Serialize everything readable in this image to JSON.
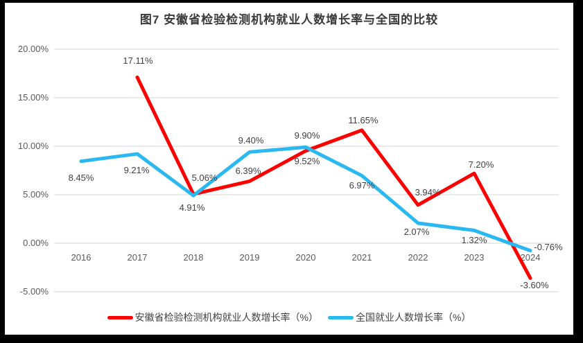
{
  "chart_data": {
    "type": "line",
    "title": "图7  安徽省检验检测机构就业人数增长率与全国的比较",
    "categories": [
      "2016",
      "2017",
      "2018",
      "2019",
      "2020",
      "2021",
      "2022",
      "2023",
      "2024"
    ],
    "series": [
      {
        "name": "安徽省检验检测机构就业人数增长率（%）",
        "color": "#fe0000",
        "values": [
          null,
          17.11,
          5.06,
          6.39,
          9.52,
          11.65,
          3.94,
          7.2,
          -3.6
        ],
        "labels": [
          null,
          "17.11%",
          "5.06%",
          "6.39%",
          "9.52%",
          "11.65%",
          "3.94%",
          "7.20%",
          "-3.60%"
        ]
      },
      {
        "name": "全国就业人数增长率（%）",
        "color": "#2ab8f0",
        "values": [
          8.45,
          9.21,
          4.91,
          9.4,
          9.9,
          6.97,
          2.07,
          1.32,
          -0.76
        ],
        "labels": [
          "8.45%",
          "9.21%",
          "4.91%",
          "9.40%",
          "9.90%",
          "6.97%",
          "2.07%",
          "1.32%",
          "-0.76%"
        ]
      }
    ],
    "y_axis": {
      "min": -5,
      "max": 20,
      "ticks": [
        {
          "value": 20,
          "label": "20.00%"
        },
        {
          "value": 15,
          "label": "15.00%"
        },
        {
          "value": 10,
          "label": "10.00%"
        },
        {
          "value": 5,
          "label": "5.00%"
        },
        {
          "value": 0,
          "label": "0.00%"
        },
        {
          "value": -5,
          "label": "-5.00%"
        }
      ]
    },
    "grid": true,
    "legend_position": "bottom",
    "colors": {
      "gridline": "#d6d6d6",
      "axis_text": "#595959",
      "label_text": "#404040",
      "frame_border": "#000000"
    }
  }
}
